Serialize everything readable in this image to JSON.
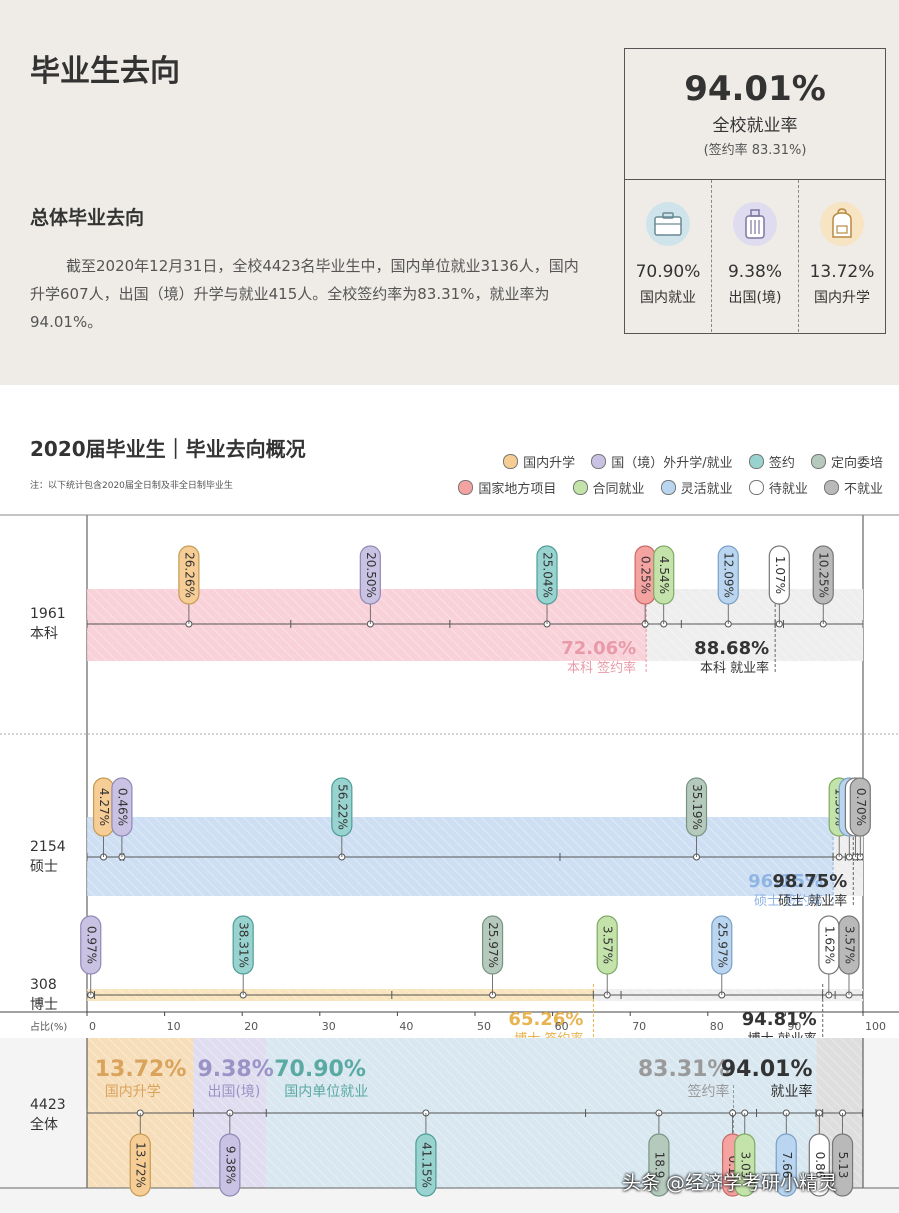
{
  "header": {
    "title": "毕业生去向",
    "subtitle": "总体毕业去向",
    "paragraph": "截至2020年12月31日，全校4423名毕业生中，国内单位就业3136人，国内升学607人，出国（境）升学与就业415人。全校签约率为83.31%，就业率为94.01%。"
  },
  "stats": {
    "employment_rate": "94.01%",
    "employment_label": "全校就业率",
    "sign_rate_text": "(签约率 83.31%)",
    "cards": [
      {
        "icon": "briefcase-icon",
        "color": "#cfe3ea",
        "value": "70.90%",
        "label": "国内就业"
      },
      {
        "icon": "luggage-icon",
        "color": "#dedcee",
        "value": "9.38%",
        "label": "出国(境)"
      },
      {
        "icon": "backpack-icon",
        "color": "#f6e4c2",
        "value": "13.72%",
        "label": "国内升学"
      }
    ]
  },
  "chart": {
    "title": "2020届毕业生｜毕业去向概况",
    "note": "注：以下统计包含2020届全日制及非全日制毕业生"
  },
  "legend": [
    {
      "label": "国内升学",
      "color": "#f6cd95"
    },
    {
      "label": "国（境）外升学/就业",
      "color": "#c9c2e3"
    },
    {
      "label": "签约",
      "color": "#99d3d0"
    },
    {
      "label": "定向委培",
      "color": "#b5c9bd"
    },
    {
      "label": "国家地方项目",
      "color": "#f4a3a1"
    },
    {
      "label": "合同就业",
      "color": "#c4e3ab"
    },
    {
      "label": "灵活就业",
      "color": "#b9d5f0"
    },
    {
      "label": "待就业",
      "color": "#ffffff"
    },
    {
      "label": "不就业",
      "color": "#b9b9b9"
    }
  ],
  "chart_data": {
    "type": "bar",
    "xlabel": "占比(%)",
    "xlim": [
      0,
      100
    ],
    "xticks": [
      "0",
      "10",
      "20",
      "30",
      "40",
      "50",
      "60",
      "70",
      "80",
      "90",
      "100"
    ],
    "categories": [
      "国内升学",
      "国(境)外升学/就业",
      "签约",
      "定向委培",
      "国家地方项目",
      "合同就业",
      "灵活就业",
      "待就业",
      "不就业"
    ],
    "rows": [
      {
        "count": "1961",
        "name": "本科",
        "segments": [
          26.26,
          20.5,
          25.04,
          0.25,
          4.54,
          12.09,
          1.07,
          10.25
        ],
        "categories": [
          "国内升学",
          "国(境)外升学/就业",
          "签约",
          "国家地方项目",
          "合同就业",
          "灵活就业",
          "待就业",
          "不就业"
        ],
        "labels": [
          "26.26%",
          "20.50%",
          "25.04%",
          "0.25%",
          "4.54%",
          "12.09%",
          "1.07%",
          "10.25%"
        ],
        "sign_rate": "72.06%",
        "sign_label": "本科 签约率",
        "emp_rate": "88.68%",
        "emp_label": "本科 就业率"
      },
      {
        "count": "2154",
        "name": "硕士",
        "segments": [
          4.27,
          0.46,
          56.22,
          35.19,
          1.58,
          1.02,
          0.56,
          0.7
        ],
        "categories": [
          "国内升学",
          "国(境)外升学/就业",
          "签约",
          "定向委培",
          "合同就业",
          "灵活就业",
          "待就业",
          "不就业"
        ],
        "labels": [
          "4.27%",
          "0.46%",
          "56.22%",
          "35.19%",
          "1.58%",
          "1.02%",
          "0.56%",
          "0.70%"
        ],
        "sign_rate": "96.15%",
        "sign_label": "硕士 签约率",
        "emp_rate": "98.75%",
        "emp_label": "硕士 就业率"
      },
      {
        "count": "308",
        "name": "博士",
        "segments": [
          0.97,
          38.31,
          25.97,
          3.57,
          25.97,
          1.62,
          3.57
        ],
        "categories": [
          "国(境)外升学/就业",
          "签约",
          "定向委培",
          "合同就业",
          "灵活就业",
          "待就业",
          "不就业"
        ],
        "labels": [
          "0.97%",
          "38.31%",
          "25.97%",
          "3.57%",
          "25.97%",
          "1.62%",
          "3.57%"
        ],
        "sign_rate": "65.26%",
        "sign_label": "博士 签约率",
        "emp_rate": "94.81%",
        "emp_label": "博士 就业率"
      }
    ],
    "total": {
      "count": "4423",
      "name": "全体",
      "segments": [
        13.72,
        9.38,
        41.15,
        18.9,
        0.1,
        3.03,
        7.66,
        0.86,
        5.13
      ],
      "categories": [
        "国内升学",
        "国(境)外升学/就业",
        "签约",
        "定向委培",
        "国家地方项目",
        "合同就业",
        "灵活就业",
        "待就业",
        "不就业"
      ],
      "labels": [
        "13.72%",
        "9.38%",
        "41.15%",
        "18.9",
        "0.1",
        "3.03",
        "7.66",
        "0.86",
        "5.13"
      ],
      "top_labels": [
        {
          "value": "13.72%",
          "label": "国内升学",
          "color": "#d9a35c"
        },
        {
          "value": "9.38%",
          "label": "出国(境)",
          "color": "#9a94c6"
        },
        {
          "value": "70.90%",
          "label": "国内单位就业",
          "color": "#5aa9a2"
        }
      ],
      "sign_rate": "83.31%",
      "sign_label": "签约率",
      "emp_rate": "94.01%",
      "emp_label": "就业率"
    }
  },
  "watermark": "头条 @经济学考研小精灵"
}
